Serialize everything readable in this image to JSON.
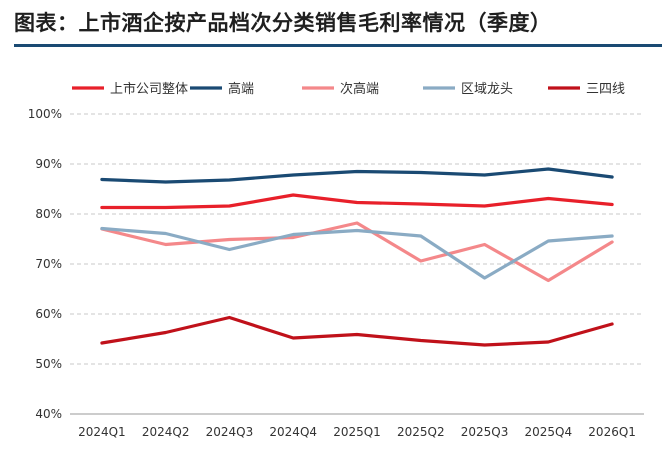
{
  "title": "图表：上市酒企按产品档次分类销售毛利率情况（季度）",
  "chart_data": {
    "type": "line",
    "title": "",
    "xlabel": "",
    "ylabel": "",
    "categories": [
      "2024Q1",
      "2024Q2",
      "2024Q3",
      "2024Q4",
      "2025Q1",
      "2025Q2",
      "2025Q3",
      "2025Q4",
      "2026Q1"
    ],
    "ylim": [
      40,
      100
    ],
    "yticks": [
      40,
      50,
      60,
      70,
      80,
      90,
      100
    ],
    "ytick_labels": [
      "40%",
      "50%",
      "60%",
      "70%",
      "80%",
      "90%",
      "100%"
    ],
    "grid": "horizontal-dashed",
    "legend_position": "top",
    "series": [
      {
        "name": "上市公司整体",
        "color": "#e8202a",
        "values": [
          81.3,
          81.3,
          81.6,
          83.8,
          82.3,
          82.0,
          81.6,
          83.1,
          81.9
        ]
      },
      {
        "name": "高端",
        "color": "#1a4a73",
        "values": [
          86.9,
          86.4,
          86.8,
          87.8,
          88.5,
          88.3,
          87.8,
          89.0,
          87.4
        ]
      },
      {
        "name": "次高端",
        "color": "#f4888a",
        "values": [
          77.0,
          73.9,
          74.9,
          75.3,
          78.2,
          70.6,
          73.9,
          66.7,
          74.4
        ]
      },
      {
        "name": "区域龙头",
        "color": "#8aabc4",
        "values": [
          77.1,
          76.1,
          72.9,
          75.9,
          76.7,
          75.6,
          67.2,
          74.6,
          75.6
        ]
      },
      {
        "name": "三四线",
        "color": "#c0111a",
        "values": [
          54.2,
          56.3,
          59.3,
          55.2,
          55.9,
          54.7,
          53.8,
          54.4,
          58.0
        ]
      }
    ]
  }
}
